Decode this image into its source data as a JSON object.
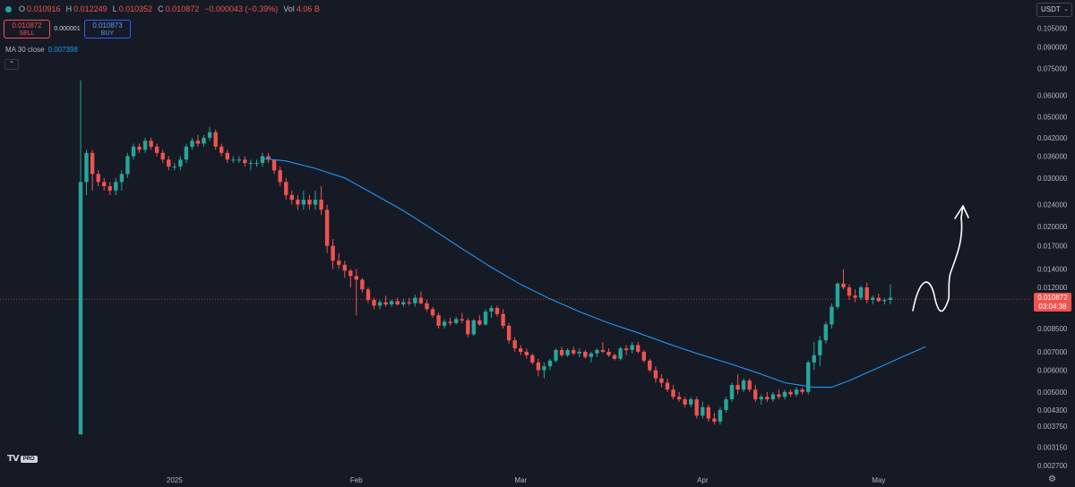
{
  "legend": {
    "open_label": "O",
    "open": "0.010916",
    "high_label": "H",
    "high": "0.012249",
    "low_label": "L",
    "low": "0.010352",
    "close_label": "C",
    "close": "0.010872",
    "change": "−0.000043 (−0.39%)",
    "vol_label": "Vol",
    "vol": "4.06 B"
  },
  "trade": {
    "sell_price": "0.010872",
    "sell_label": "SELL",
    "spread": "0.000001",
    "buy_price": "0.010873",
    "buy_label": "BUY"
  },
  "ma": {
    "label": "MA 30 close",
    "value": "0.007398",
    "color": "#2196f3"
  },
  "collapse_icon": "chevron-up-icon",
  "currency_selector": "USDT",
  "current_price": {
    "value": "0.010872",
    "countdown": "03:04:38"
  },
  "branding": {
    "logo": "TV",
    "badge": "PRO"
  },
  "colors": {
    "up": "#26a69a",
    "down": "#ef5350",
    "background": "#161a25",
    "ma": "#2196f3",
    "annotation": "#ffffff"
  },
  "chart_data": {
    "type": "candlestick",
    "interval": "daily",
    "y_scale": "log",
    "ylim": [
      0.0027,
      0.1096
    ],
    "y_ticks": [
      0.105,
      0.09,
      0.075,
      0.06,
      0.05,
      0.042,
      0.036,
      0.03,
      0.024,
      0.02,
      0.017,
      0.014,
      0.012,
      0.0085,
      0.007,
      0.006,
      0.005,
      0.0043,
      0.00375,
      0.00315,
      0.0027
    ],
    "y_tick_labels": [
      "0.105000",
      "0.090000",
      "0.075000",
      "0.060000",
      "0.050000",
      "0.042000",
      "0.036000",
      "0.030000",
      "0.024000",
      "0.020000",
      "0.017000",
      "0.014000",
      "0.012000",
      "0.008500",
      "0.007000",
      "0.006000",
      "0.005000",
      "0.004300",
      "0.003750",
      "0.003150",
      "0.002700"
    ],
    "x_ticks": [
      {
        "label": "2025",
        "index": 16
      },
      {
        "label": "Feb",
        "index": 47
      },
      {
        "label": "Mar",
        "index": 75
      },
      {
        "label": "Apr",
        "index": 106
      },
      {
        "label": "May",
        "index": 136
      }
    ],
    "candles_ohlc": [
      [
        0.0035,
        0.068,
        0.0035,
        0.029
      ],
      [
        0.029,
        0.038,
        0.026,
        0.037
      ],
      [
        0.037,
        0.038,
        0.027,
        0.031
      ],
      [
        0.031,
        0.032,
        0.028,
        0.029
      ],
      [
        0.029,
        0.03,
        0.027,
        0.028
      ],
      [
        0.028,
        0.029,
        0.026,
        0.027
      ],
      [
        0.027,
        0.03,
        0.026,
        0.029
      ],
      [
        0.029,
        0.032,
        0.027,
        0.031
      ],
      [
        0.031,
        0.037,
        0.03,
        0.036
      ],
      [
        0.036,
        0.04,
        0.035,
        0.039
      ],
      [
        0.039,
        0.04,
        0.037,
        0.038
      ],
      [
        0.038,
        0.042,
        0.037,
        0.041
      ],
      [
        0.041,
        0.042,
        0.038,
        0.039
      ],
      [
        0.039,
        0.04,
        0.036,
        0.037
      ],
      [
        0.037,
        0.038,
        0.034,
        0.035
      ],
      [
        0.035,
        0.036,
        0.032,
        0.033
      ],
      [
        0.033,
        0.034,
        0.032,
        0.033
      ],
      [
        0.033,
        0.036,
        0.032,
        0.035
      ],
      [
        0.035,
        0.04,
        0.034,
        0.039
      ],
      [
        0.039,
        0.042,
        0.038,
        0.041
      ],
      [
        0.041,
        0.043,
        0.039,
        0.04
      ],
      [
        0.04,
        0.043,
        0.039,
        0.042
      ],
      [
        0.042,
        0.046,
        0.041,
        0.044
      ],
      [
        0.044,
        0.045,
        0.038,
        0.039
      ],
      [
        0.039,
        0.04,
        0.036,
        0.037
      ],
      [
        0.037,
        0.038,
        0.034,
        0.035
      ],
      [
        0.035,
        0.036,
        0.034,
        0.035
      ],
      [
        0.035,
        0.036,
        0.034,
        0.035
      ],
      [
        0.035,
        0.036,
        0.033,
        0.034
      ],
      [
        0.034,
        0.035,
        0.032,
        0.034
      ],
      [
        0.034,
        0.035,
        0.033,
        0.034
      ],
      [
        0.034,
        0.037,
        0.033,
        0.036
      ],
      [
        0.036,
        0.037,
        0.034,
        0.035
      ],
      [
        0.035,
        0.035,
        0.031,
        0.032
      ],
      [
        0.032,
        0.033,
        0.028,
        0.029
      ],
      [
        0.029,
        0.03,
        0.025,
        0.026
      ],
      [
        0.026,
        0.027,
        0.024,
        0.025
      ],
      [
        0.025,
        0.026,
        0.023,
        0.024
      ],
      [
        0.024,
        0.027,
        0.023,
        0.025
      ],
      [
        0.025,
        0.026,
        0.023,
        0.024
      ],
      [
        0.024,
        0.027,
        0.023,
        0.025
      ],
      [
        0.025,
        0.028,
        0.022,
        0.023
      ],
      [
        0.023,
        0.024,
        0.016,
        0.017
      ],
      [
        0.017,
        0.018,
        0.014,
        0.015
      ],
      [
        0.015,
        0.016,
        0.014,
        0.0145
      ],
      [
        0.0145,
        0.015,
        0.013,
        0.0138
      ],
      [
        0.0138,
        0.014,
        0.012,
        0.0132
      ],
      [
        0.0132,
        0.014,
        0.0095,
        0.0128
      ],
      [
        0.0128,
        0.013,
        0.0115,
        0.0118
      ],
      [
        0.0118,
        0.012,
        0.0105,
        0.0108
      ],
      [
        0.0108,
        0.011,
        0.01,
        0.0103
      ],
      [
        0.0103,
        0.0108,
        0.01,
        0.0106
      ],
      [
        0.0106,
        0.0112,
        0.0102,
        0.0104
      ],
      [
        0.0104,
        0.0108,
        0.0102,
        0.0107
      ],
      [
        0.0107,
        0.011,
        0.0103,
        0.0104
      ],
      [
        0.0104,
        0.0109,
        0.0102,
        0.0106
      ],
      [
        0.0106,
        0.011,
        0.0103,
        0.0105
      ],
      [
        0.0105,
        0.0113,
        0.0102,
        0.011
      ],
      [
        0.011,
        0.0116,
        0.0104,
        0.0105
      ],
      [
        0.0105,
        0.0108,
        0.0098,
        0.01
      ],
      [
        0.01,
        0.0102,
        0.0093,
        0.0095
      ],
      [
        0.0095,
        0.0097,
        0.0085,
        0.0087
      ],
      [
        0.0087,
        0.0092,
        0.0085,
        0.009
      ],
      [
        0.009,
        0.0093,
        0.0087,
        0.0089
      ],
      [
        0.0089,
        0.0094,
        0.0088,
        0.0092
      ],
      [
        0.0092,
        0.0097,
        0.0089,
        0.0091
      ],
      [
        0.0091,
        0.0093,
        0.0079,
        0.0081
      ],
      [
        0.0081,
        0.0092,
        0.008,
        0.0091
      ],
      [
        0.0091,
        0.0095,
        0.0087,
        0.0088
      ],
      [
        0.0088,
        0.01,
        0.0087,
        0.0098
      ],
      [
        0.0098,
        0.0103,
        0.0093,
        0.0101
      ],
      [
        0.0101,
        0.0103,
        0.0094,
        0.0096
      ],
      [
        0.0096,
        0.01,
        0.0085,
        0.0087
      ],
      [
        0.0087,
        0.0089,
        0.0075,
        0.0077
      ],
      [
        0.0077,
        0.0079,
        0.007,
        0.0072
      ],
      [
        0.0072,
        0.0074,
        0.0068,
        0.007
      ],
      [
        0.007,
        0.0072,
        0.0066,
        0.0068
      ],
      [
        0.0068,
        0.0069,
        0.0063,
        0.0064
      ],
      [
        0.0064,
        0.0066,
        0.0057,
        0.006
      ],
      [
        0.006,
        0.0064,
        0.0056,
        0.0062
      ],
      [
        0.0062,
        0.0066,
        0.006,
        0.0065
      ],
      [
        0.0065,
        0.0072,
        0.0064,
        0.0071
      ],
      [
        0.0071,
        0.0073,
        0.0067,
        0.0068
      ],
      [
        0.0068,
        0.0072,
        0.0067,
        0.0071
      ],
      [
        0.0071,
        0.0073,
        0.0068,
        0.0069
      ],
      [
        0.0069,
        0.0072,
        0.0067,
        0.007
      ],
      [
        0.007,
        0.0071,
        0.0066,
        0.0067
      ],
      [
        0.0067,
        0.007,
        0.0064,
        0.0069
      ],
      [
        0.0069,
        0.0072,
        0.0067,
        0.0071
      ],
      [
        0.0071,
        0.0076,
        0.0069,
        0.007
      ],
      [
        0.007,
        0.0072,
        0.0067,
        0.0068
      ],
      [
        0.0068,
        0.0069,
        0.0065,
        0.0066
      ],
      [
        0.0066,
        0.0073,
        0.0065,
        0.0072
      ],
      [
        0.0072,
        0.0074,
        0.0068,
        0.0071
      ],
      [
        0.0071,
        0.0076,
        0.0069,
        0.0074
      ],
      [
        0.0074,
        0.0076,
        0.0069,
        0.007
      ],
      [
        0.007,
        0.0071,
        0.0064,
        0.0065
      ],
      [
        0.0065,
        0.0066,
        0.0059,
        0.006
      ],
      [
        0.006,
        0.0062,
        0.0054,
        0.0056
      ],
      [
        0.0056,
        0.0058,
        0.0052,
        0.0054
      ],
      [
        0.0054,
        0.0056,
        0.005,
        0.0051
      ],
      [
        0.0051,
        0.0053,
        0.0047,
        0.0048
      ],
      [
        0.0048,
        0.005,
        0.0046,
        0.0047
      ],
      [
        0.0047,
        0.0048,
        0.0044,
        0.0045
      ],
      [
        0.0045,
        0.0048,
        0.0044,
        0.0047
      ],
      [
        0.0047,
        0.0048,
        0.004,
        0.0041
      ],
      [
        0.0041,
        0.0046,
        0.004,
        0.0044
      ],
      [
        0.0044,
        0.0045,
        0.0039,
        0.004
      ],
      [
        0.004,
        0.0042,
        0.0038,
        0.0039
      ],
      [
        0.0039,
        0.0044,
        0.0038,
        0.0043
      ],
      [
        0.0043,
        0.0048,
        0.0042,
        0.0047
      ],
      [
        0.0047,
        0.0054,
        0.0046,
        0.0053
      ],
      [
        0.0053,
        0.0058,
        0.0049,
        0.0051
      ],
      [
        0.0051,
        0.0056,
        0.005,
        0.0055
      ],
      [
        0.0055,
        0.0056,
        0.005,
        0.0051
      ],
      [
        0.0051,
        0.0053,
        0.0046,
        0.0047
      ],
      [
        0.0047,
        0.0049,
        0.0045,
        0.0048
      ],
      [
        0.0048,
        0.005,
        0.0046,
        0.0047
      ],
      [
        0.0047,
        0.005,
        0.0046,
        0.0049
      ],
      [
        0.0049,
        0.0051,
        0.0047,
        0.0048
      ],
      [
        0.0048,
        0.0051,
        0.0047,
        0.005
      ],
      [
        0.005,
        0.0051,
        0.0048,
        0.0049
      ],
      [
        0.0049,
        0.0052,
        0.0048,
        0.0051
      ],
      [
        0.0051,
        0.0052,
        0.0049,
        0.005
      ],
      [
        0.005,
        0.0065,
        0.0049,
        0.0064
      ],
      [
        0.0064,
        0.0076,
        0.006,
        0.0068
      ],
      [
        0.0068,
        0.008,
        0.0062,
        0.0077
      ],
      [
        0.0077,
        0.009,
        0.0075,
        0.0088
      ],
      [
        0.0088,
        0.0105,
        0.0085,
        0.0102
      ],
      [
        0.0102,
        0.0125,
        0.01,
        0.0124
      ],
      [
        0.0124,
        0.014,
        0.0118,
        0.012
      ],
      [
        0.012,
        0.0123,
        0.0108,
        0.0112
      ],
      [
        0.0112,
        0.0118,
        0.0106,
        0.011
      ],
      [
        0.011,
        0.0122,
        0.0108,
        0.012
      ],
      [
        0.012,
        0.0125,
        0.0105,
        0.0108
      ],
      [
        0.0108,
        0.0112,
        0.0104,
        0.011
      ],
      [
        0.011,
        0.0114,
        0.0106,
        0.0107
      ],
      [
        0.0107,
        0.011,
        0.0104,
        0.0108
      ],
      [
        0.0108,
        0.0123,
        0.0104,
        0.011
      ]
    ],
    "ma30": [
      [
        31,
        0.0353
      ],
      [
        35,
        0.0346
      ],
      [
        40,
        0.0325
      ],
      [
        45,
        0.03
      ],
      [
        50,
        0.0262
      ],
      [
        55,
        0.0228
      ],
      [
        60,
        0.0195
      ],
      [
        65,
        0.0166
      ],
      [
        70,
        0.0142
      ],
      [
        75,
        0.0123
      ],
      [
        80,
        0.0109
      ],
      [
        85,
        0.0098
      ],
      [
        90,
        0.0089
      ],
      [
        95,
        0.0082
      ],
      [
        100,
        0.0075
      ],
      [
        105,
        0.0069
      ],
      [
        110,
        0.0064
      ],
      [
        115,
        0.0059
      ],
      [
        120,
        0.0054
      ],
      [
        125,
        0.0052
      ],
      [
        128,
        0.0052
      ],
      [
        131,
        0.0055
      ],
      [
        135,
        0.006
      ],
      [
        140,
        0.0067
      ],
      [
        144,
        0.0073
      ]
    ],
    "annotation": "hand-drawn arrow pointing up from current price toward 0.024"
  }
}
